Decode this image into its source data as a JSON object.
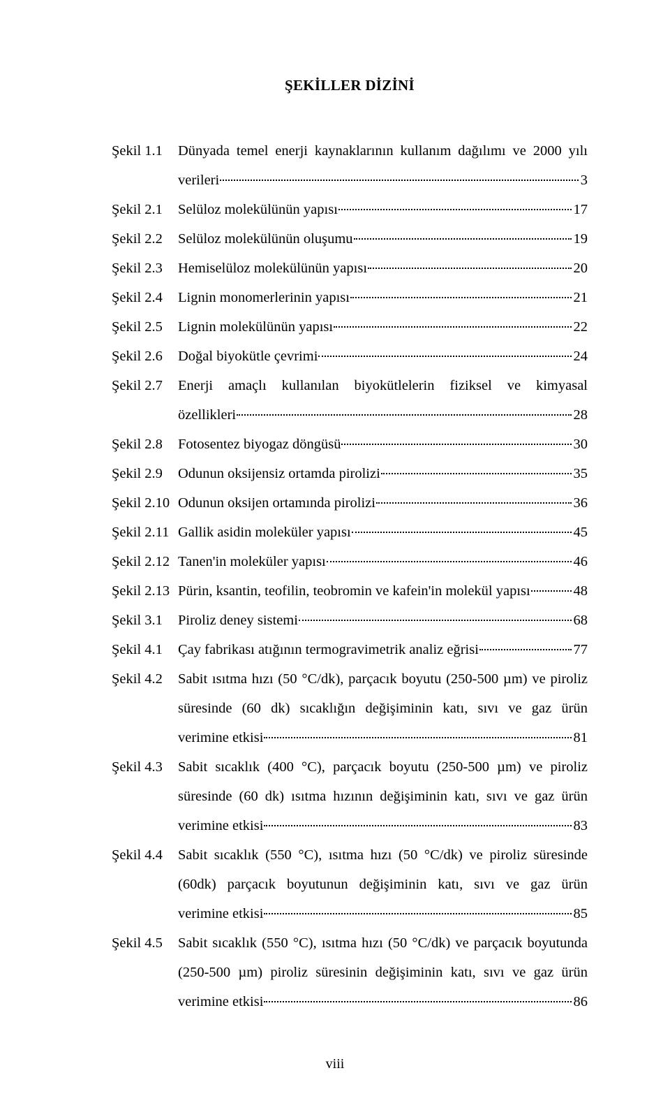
{
  "font": {
    "family": "Times New Roman",
    "title_size_pt": 16,
    "body_size_pt": 15.5,
    "line_height": 2.05
  },
  "colors": {
    "text": "#000000",
    "background": "#ffffff"
  },
  "title": "ŞEKİLLER DİZİNİ",
  "footer": "viii",
  "entries": [
    {
      "label": "Şekil 1.1",
      "lines": [
        "Dünyada temel enerji kaynaklarının kullanım dağılımı ve 2000 yılı"
      ],
      "last": "verileri",
      "page": "3"
    },
    {
      "label": "Şekil 2.1",
      "last": "Selüloz molekülünün yapısı",
      "page": "17"
    },
    {
      "label": "Şekil 2.2",
      "last": "Selüloz molekülünün oluşumu",
      "page": "19"
    },
    {
      "label": "Şekil 2.3",
      "last": "Hemiselüloz molekülünün yapısı",
      "page": "20"
    },
    {
      "label": "Şekil 2.4",
      "last": "Lignin monomerlerinin yapısı",
      "page": "21"
    },
    {
      "label": "Şekil 2.5",
      "last": "Lignin molekülünün yapısı",
      "page": "22"
    },
    {
      "label": "Şekil 2.6",
      "last": "Doğal biyokütle çevrimi",
      "page": "24"
    },
    {
      "label": "Şekil 2.7",
      "lines": [
        "Enerji amaçlı kullanılan biyokütlelerin fiziksel ve kimyasal"
      ],
      "last": "özellikleri",
      "page": "28"
    },
    {
      "label": "Şekil 2.8",
      "last": "Fotosentez biyogaz döngüsü",
      "page": "30"
    },
    {
      "label": "Şekil 2.9",
      "last": "Odunun oksijensiz ortamda pirolizi",
      "page": "35"
    },
    {
      "label": "Şekil 2.10",
      "last": "Odunun oksijen ortamında pirolizi",
      "page": "36"
    },
    {
      "label": "Şekil 2.11",
      "last": "Gallik asidin moleküler yapısı",
      "page": "45"
    },
    {
      "label": "Şekil 2.12",
      "last": "Tanen'in moleküler yapısı",
      "page": "46"
    },
    {
      "label": "Şekil 2.13",
      "last": "Pürin, ksantin, teofilin, teobromin ve kafein'in molekül yapısı",
      "page": "48"
    },
    {
      "label": "Şekil 3.1",
      "last": "Piroliz deney sistemi",
      "page": "68"
    },
    {
      "label": "Şekil 4.1",
      "last": "Çay fabrikası atığının termogravimetrik analiz eğrisi",
      "page": "77"
    },
    {
      "label": "Şekil 4.2",
      "lines": [
        "Sabit ısıtma hızı (50 °C/dk), parçacık boyutu (250-500 µm) ve piroliz",
        "süresinde  (60 dk) sıcaklığın değişiminin katı, sıvı ve gaz ürün"
      ],
      "last": "verimine etkisi",
      "page": "81"
    },
    {
      "label": "Şekil 4.3",
      "lines": [
        "Sabit sıcaklık (400 °C), parçacık boyutu (250-500 µm) ve piroliz",
        "süresinde (60 dk) ısıtma hızının değişiminin katı, sıvı ve gaz ürün"
      ],
      "last": "verimine etkisi",
      "page": "83"
    },
    {
      "label": "Şekil 4.4",
      "lines": [
        "Sabit sıcaklık (550 °C), ısıtma hızı (50 °C/dk) ve piroliz süresinde",
        "(60dk) parçacık boyutunun değişiminin katı, sıvı ve gaz ürün"
      ],
      "last": "verimine etkisi",
      "page": "85"
    },
    {
      "label": "Şekil 4.5",
      "lines": [
        "Sabit sıcaklık (550 °C), ısıtma hızı (50 °C/dk) ve parçacık boyutunda",
        "(250-500 µm) piroliz süresinin değişiminin katı, sıvı ve gaz ürün"
      ],
      "last": "verimine etkisi",
      "page": "86"
    }
  ]
}
